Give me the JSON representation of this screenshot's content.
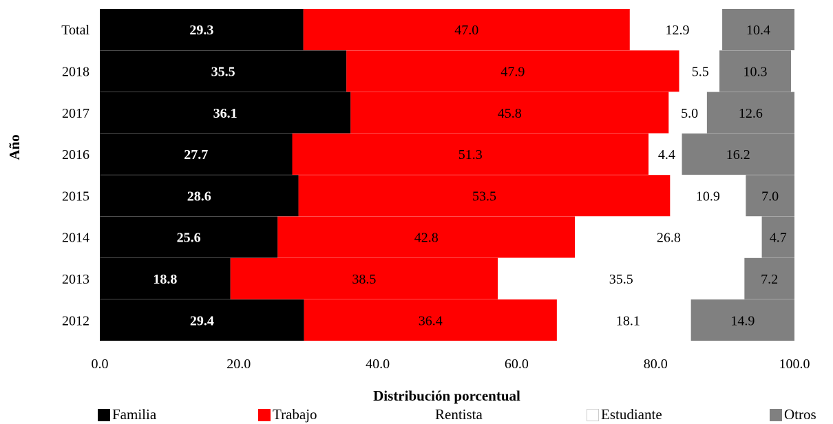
{
  "chart_data": {
    "type": "bar",
    "orientation": "horizontal",
    "stacked": true,
    "xlabel": "Distribución porcentual",
    "ylabel": "Año",
    "xlim": [
      0,
      100
    ],
    "x_ticks": [
      "0.0",
      "20.0",
      "40.0",
      "60.0",
      "80.0",
      "100.0"
    ],
    "categories": [
      "Total",
      "2018",
      "2017",
      "2016",
      "2015",
      "2014",
      "2013",
      "2012"
    ],
    "series": [
      {
        "name": "Familia",
        "color": "#000000",
        "label_color": "#ffffff",
        "values": [
          29.3,
          35.5,
          36.1,
          27.7,
          28.6,
          25.6,
          18.8,
          29.4
        ]
      },
      {
        "name": "Trabajo",
        "color": "#ff0000",
        "label_color": "#000000",
        "values": [
          47.0,
          47.9,
          45.8,
          51.3,
          53.5,
          42.8,
          38.5,
          36.4
        ]
      },
      {
        "name": "Rentista",
        "color": "#ffffff",
        "label_color": "#000000",
        "values": [
          0.4,
          0.3,
          0.5,
          0.4,
          0.0,
          0.1,
          0.0,
          1.2
        ]
      },
      {
        "name": "Estudiante",
        "color": "#ffffff",
        "label_color": "#000000",
        "values": [
          12.9,
          5.5,
          5.0,
          4.4,
          10.9,
          26.8,
          35.5,
          18.1
        ]
      },
      {
        "name": "Otros",
        "color": "#808080",
        "label_color": "#000000",
        "values": [
          10.4,
          10.3,
          12.6,
          16.2,
          7.0,
          4.7,
          7.2,
          14.9
        ]
      }
    ],
    "data_labels": [
      [
        "29.3",
        "47.0",
        "",
        "12.9",
        "10.4"
      ],
      [
        "35.5",
        "47.9",
        "",
        "5.5",
        "10.3"
      ],
      [
        "36.1",
        "45.8",
        "",
        "5.0",
        "12.6"
      ],
      [
        "27.7",
        "51.3",
        "",
        "4.4",
        "16.2"
      ],
      [
        "28.6",
        "53.5",
        "",
        "10.9",
        "7.0"
      ],
      [
        "25.6",
        "42.8",
        "",
        "26.8",
        "4.7"
      ],
      [
        "18.8",
        "38.5",
        "",
        "35.5",
        "7.2"
      ],
      [
        "29.4",
        "36.4",
        "",
        "18.1",
        "14.9"
      ]
    ],
    "legend_position": "bottom"
  }
}
